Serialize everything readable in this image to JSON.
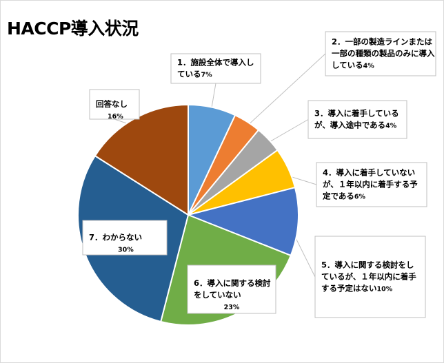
{
  "title": "HACCP導入状況",
  "chart_data": {
    "type": "pie",
    "title": "HACCP導入状況",
    "start_angle_deg": 0,
    "direction": "clockwise",
    "slices": [
      {
        "lines": [
          "1．施設全体で導入し",
          "ている"
        ],
        "value": 7,
        "label_pct": "7%",
        "color": "#5B9BD5"
      },
      {
        "lines": [
          "2．一部の製造ラインまたは",
          "一部の種類の製品のみに導入",
          "している"
        ],
        "value": 4,
        "label_pct": "4%",
        "color": "#ED7D31"
      },
      {
        "lines": [
          "3．導入に着手している",
          "が、導入途中である"
        ],
        "value": 4,
        "label_pct": "4%",
        "color": "#A5A5A5"
      },
      {
        "lines": [
          "4．導入に着手していない",
          "が、１年以内に着手する予",
          "定である"
        ],
        "value": 6,
        "label_pct": "6%",
        "color": "#FFC000"
      },
      {
        "lines": [
          "5．導入に関する検討をし",
          "ているが、１年以内に着手",
          "する予定はない"
        ],
        "value": 10,
        "label_pct": "10%",
        "color": "#4472C4"
      },
      {
        "lines": [
          "6．導入に関する検討",
          "をしていない"
        ],
        "value": 23,
        "label_pct": "23%",
        "color": "#70AD47"
      },
      {
        "lines": [
          "7．わからない"
        ],
        "value": 30,
        "label_pct": "30%",
        "color": "#255E91"
      },
      {
        "lines": [
          "回答なし"
        ],
        "value": 16,
        "label_pct": "16%",
        "color": "#9E480E"
      }
    ]
  }
}
